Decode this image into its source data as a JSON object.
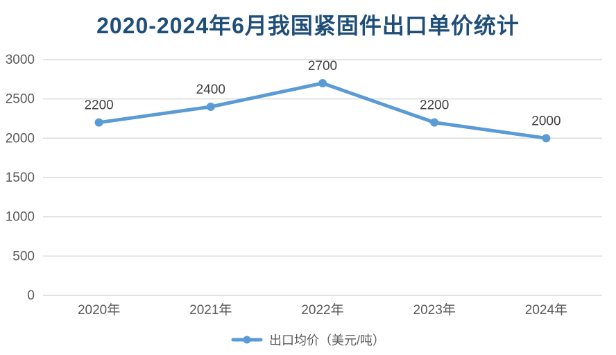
{
  "title": "2020-2024年6月我国紧固件出口单价统计",
  "colors": {
    "title_text": "#1F4E79",
    "line": "#5B9BD5",
    "grid": "#D9D9D9",
    "axis_text": "#595959",
    "data_label": "#404040",
    "background": "#FFFFFF"
  },
  "chart_data": {
    "type": "line",
    "title": "2020-2024年6月我国紧固件出口单价统计",
    "categories": [
      "2020年",
      "2021年",
      "2022年",
      "2023年",
      "2024年"
    ],
    "series": [
      {
        "name": "出口均价（美元/吨）",
        "values": [
          2200,
          2400,
          2700,
          2200,
          2000
        ]
      }
    ],
    "data_labels": [
      "2200",
      "2400",
      "2700",
      "2200",
      "2000"
    ],
    "ylabel": "",
    "xlabel": "",
    "ylim": [
      0,
      3000
    ],
    "yticks": [
      0,
      500,
      1000,
      1500,
      2000,
      2500,
      3000
    ],
    "grid": true,
    "marker": "circle",
    "legend_position": "bottom"
  }
}
